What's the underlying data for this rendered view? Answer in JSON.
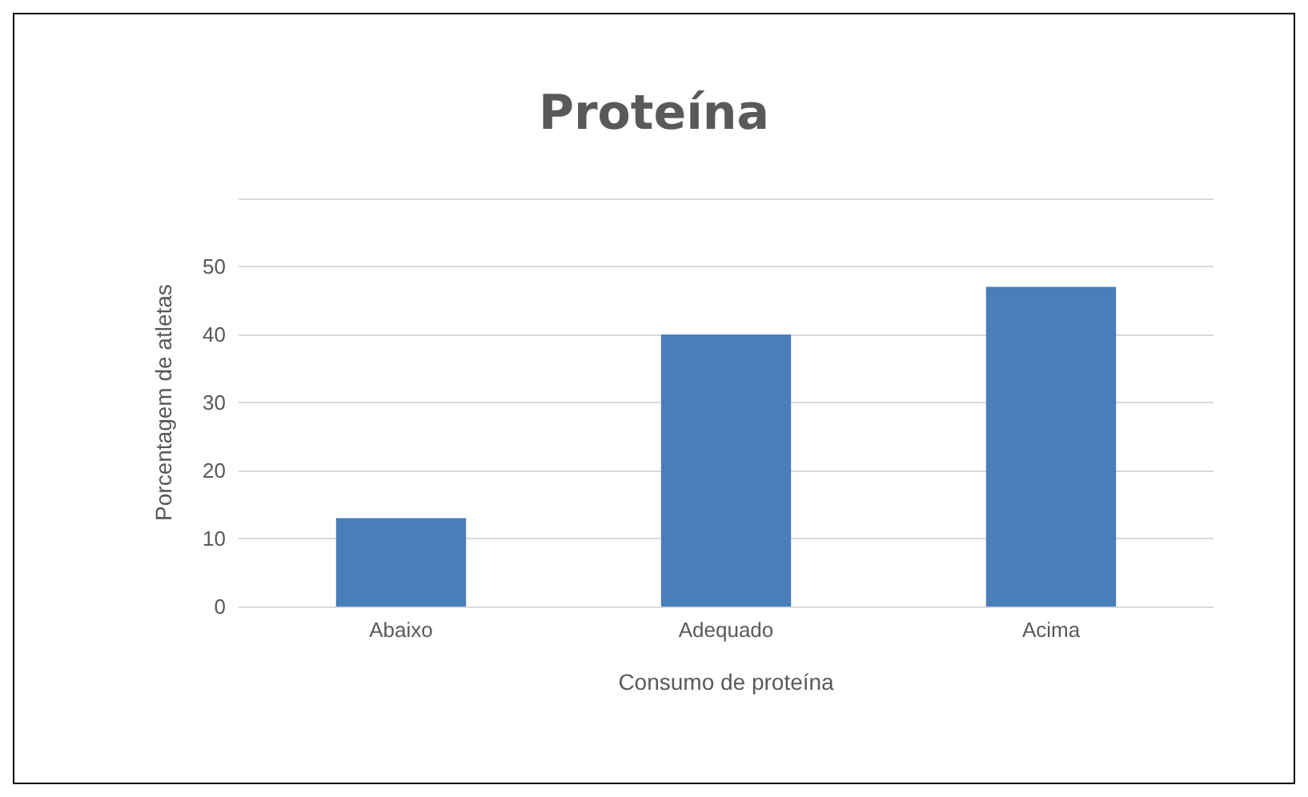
{
  "chart_data": {
    "type": "bar",
    "title": "Proteína",
    "xlabel": "Consumo de proteína",
    "ylabel": "Porcentagem de atletas",
    "categories": [
      "Abaixo",
      "Adequado",
      "Acima"
    ],
    "values": [
      13,
      40,
      47
    ],
    "color": "#4a7ebb",
    "ylim": [
      0,
      60
    ],
    "yticks": [
      0,
      10,
      20,
      30,
      40,
      50,
      {
        "value": 60,
        "label": null
      }
    ],
    "grid": "y"
  }
}
